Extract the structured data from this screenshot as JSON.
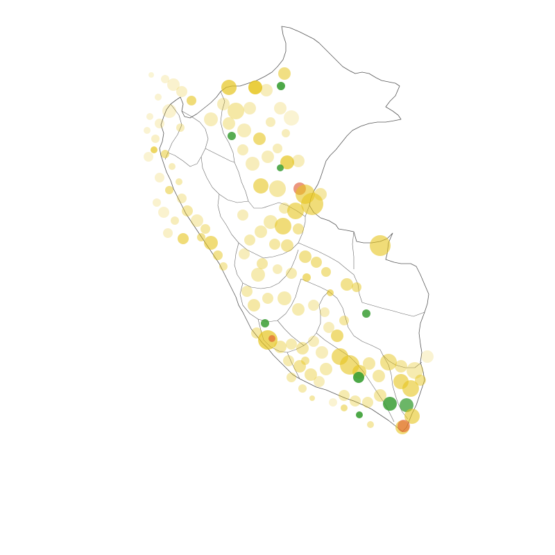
{
  "map": {
    "region": "Peru",
    "background_color": "#ffffff",
    "border_color": "#555555",
    "marker_colors": {
      "yellow": "#e6c51e",
      "green": "#3a9e34",
      "red": "#e0522a"
    }
  }
}
